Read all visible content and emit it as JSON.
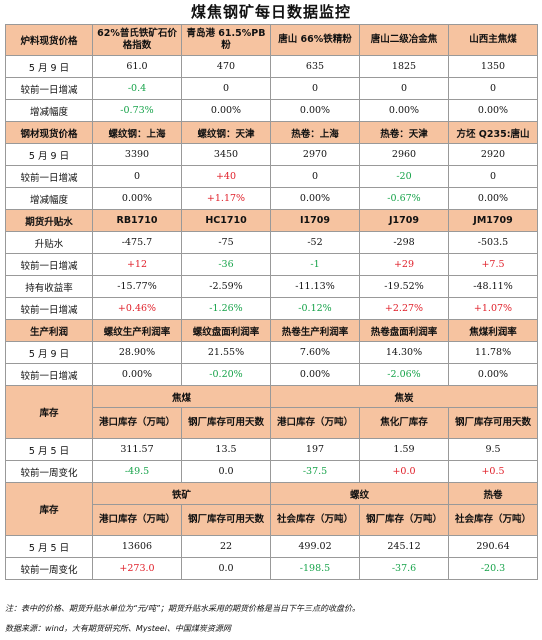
{
  "title": "煤焦钢矿每日数据监控",
  "sec1": {
    "header": [
      "炉料现货价格",
      "62%普氏铁矿石价格指数",
      "青岛港 61.5%PB粉",
      "唐山 66%铁精粉",
      "唐山二级冶金焦",
      "山西主焦煤"
    ],
    "rows": [
      {
        "label": "5 月 9 日",
        "cells": [
          {
            "v": "61.0",
            "c": ""
          },
          {
            "v": "470",
            "c": ""
          },
          {
            "v": "635",
            "c": ""
          },
          {
            "v": "1825",
            "c": ""
          },
          {
            "v": "1350",
            "c": ""
          }
        ]
      },
      {
        "label": "较前一日增减",
        "cells": [
          {
            "v": "-0.4",
            "c": "neg"
          },
          {
            "v": "0",
            "c": ""
          },
          {
            "v": "0",
            "c": ""
          },
          {
            "v": "0",
            "c": ""
          },
          {
            "v": "0",
            "c": ""
          }
        ]
      },
      {
        "label": "增减幅度",
        "cells": [
          {
            "v": "-0.73%",
            "c": "neg"
          },
          {
            "v": "0.00%",
            "c": ""
          },
          {
            "v": "0.00%",
            "c": ""
          },
          {
            "v": "0.00%",
            "c": ""
          },
          {
            "v": "0.00%",
            "c": ""
          }
        ]
      }
    ]
  },
  "sec2": {
    "header": [
      "钢材现货价格",
      "螺纹钢：上海",
      "螺纹钢：天津",
      "热卷：上海",
      "热卷：天津",
      "方坯 Q235:唐山"
    ],
    "rows": [
      {
        "label": "5 月 9 日",
        "cells": [
          {
            "v": "3390",
            "c": ""
          },
          {
            "v": "3450",
            "c": ""
          },
          {
            "v": "2970",
            "c": ""
          },
          {
            "v": "2960",
            "c": ""
          },
          {
            "v": "2920",
            "c": ""
          }
        ]
      },
      {
        "label": "较前一日增减",
        "cells": [
          {
            "v": "0",
            "c": ""
          },
          {
            "v": "+40",
            "c": "pos"
          },
          {
            "v": "0",
            "c": ""
          },
          {
            "v": "-20",
            "c": "neg"
          },
          {
            "v": "0",
            "c": ""
          }
        ]
      },
      {
        "label": "增减幅度",
        "cells": [
          {
            "v": "0.00%",
            "c": ""
          },
          {
            "v": "+1.17%",
            "c": "pos"
          },
          {
            "v": "0.00%",
            "c": ""
          },
          {
            "v": "-0.67%",
            "c": "neg"
          },
          {
            "v": "0.00%",
            "c": ""
          }
        ]
      }
    ]
  },
  "sec3": {
    "header": [
      "期货升贴水",
      "RB1710",
      "HC1710",
      "I1709",
      "J1709",
      "JM1709"
    ],
    "rows": [
      {
        "label": "升贴水",
        "cells": [
          {
            "v": "-475.7",
            "c": ""
          },
          {
            "v": "-75",
            "c": ""
          },
          {
            "v": "-52",
            "c": ""
          },
          {
            "v": "-298",
            "c": ""
          },
          {
            "v": "-503.5",
            "c": ""
          }
        ]
      },
      {
        "label": "较前一日增减",
        "cells": [
          {
            "v": "+12",
            "c": "pos"
          },
          {
            "v": "-36",
            "c": "neg"
          },
          {
            "v": "-1",
            "c": "neg"
          },
          {
            "v": "+29",
            "c": "pos"
          },
          {
            "v": "+7.5",
            "c": "pos"
          }
        ]
      },
      {
        "label": "持有收益率",
        "cells": [
          {
            "v": "-15.77%",
            "c": ""
          },
          {
            "v": "-2.59%",
            "c": ""
          },
          {
            "v": "-11.13%",
            "c": ""
          },
          {
            "v": "-19.52%",
            "c": ""
          },
          {
            "v": "-48.11%",
            "c": ""
          }
        ]
      },
      {
        "label": "较前一日增减",
        "cells": [
          {
            "v": "+0.46%",
            "c": "pos"
          },
          {
            "v": "-1.26%",
            "c": "neg"
          },
          {
            "v": "-0.12%",
            "c": "neg"
          },
          {
            "v": "+2.27%",
            "c": "pos"
          },
          {
            "v": "+1.07%",
            "c": "pos"
          }
        ]
      }
    ]
  },
  "sec4": {
    "header": [
      "生产利润",
      "螺纹生产利润率",
      "螺纹盘面利润率",
      "热卷生产利润率",
      "热卷盘面利润率",
      "焦煤利润率"
    ],
    "rows": [
      {
        "label": "5 月 9 日",
        "cells": [
          {
            "v": "28.90%",
            "c": ""
          },
          {
            "v": "21.55%",
            "c": ""
          },
          {
            "v": "7.60%",
            "c": ""
          },
          {
            "v": "14.30%",
            "c": ""
          },
          {
            "v": "11.78%",
            "c": ""
          }
        ]
      },
      {
        "label": "较前一日增减",
        "cells": [
          {
            "v": "0.00%",
            "c": ""
          },
          {
            "v": "-0.20%",
            "c": "neg"
          },
          {
            "v": "0.00%",
            "c": ""
          },
          {
            "v": "-2.06%",
            "c": "neg"
          },
          {
            "v": "0.00%",
            "c": ""
          }
        ]
      }
    ]
  },
  "sec5": {
    "label": "库存",
    "group1": "焦煤",
    "group2": "焦炭",
    "subheader": [
      "港口库存（万吨）",
      "钢厂库存可用天数",
      "港口库存（万吨）",
      "焦化厂库存",
      "钢厂库存可用天数"
    ],
    "rows": [
      {
        "label": "5 月 5 日",
        "cells": [
          {
            "v": "311.57",
            "c": ""
          },
          {
            "v": "13.5",
            "c": ""
          },
          {
            "v": "197",
            "c": ""
          },
          {
            "v": "1.59",
            "c": ""
          },
          {
            "v": "9.5",
            "c": ""
          }
        ]
      },
      {
        "label": "较前一周变化",
        "cells": [
          {
            "v": "-49.5",
            "c": "neg"
          },
          {
            "v": "0.0",
            "c": ""
          },
          {
            "v": "-37.5",
            "c": "neg"
          },
          {
            "v": "+0.0",
            "c": "pos"
          },
          {
            "v": "+0.5",
            "c": "pos"
          }
        ]
      }
    ]
  },
  "sec6": {
    "label": "库存",
    "group1": "铁矿",
    "group2": "螺纹",
    "group3": "热卷",
    "subheader": [
      "港口库存（万吨）",
      "钢厂库存可用天数",
      "社会库存（万吨）",
      "钢厂库存（万吨）",
      "社会库存（万吨）"
    ],
    "rows": [
      {
        "label": "5 月 5 日",
        "cells": [
          {
            "v": "13606",
            "c": ""
          },
          {
            "v": "22",
            "c": ""
          },
          {
            "v": "499.02",
            "c": ""
          },
          {
            "v": "245.12",
            "c": ""
          },
          {
            "v": "290.64",
            "c": ""
          }
        ]
      },
      {
        "label": "较前一周变化",
        "cells": [
          {
            "v": "+273.0",
            "c": "pos"
          },
          {
            "v": "0.0",
            "c": ""
          },
          {
            "v": "-198.5",
            "c": "neg"
          },
          {
            "v": "-37.6",
            "c": "neg"
          },
          {
            "v": "-20.3",
            "c": "neg"
          }
        ]
      }
    ]
  },
  "note": "注：表中的价格、期货升贴水单位为“元/吨”；期货升贴水采用的期货价格是当日下午三点的收盘价。",
  "source": "数据来源：wind，大有期货研究所、Mysteel、中国煤炭资源网",
  "colors": {
    "header_bg": "#f6c3a0",
    "positive": "#e0202a",
    "negative": "#17a34a"
  }
}
